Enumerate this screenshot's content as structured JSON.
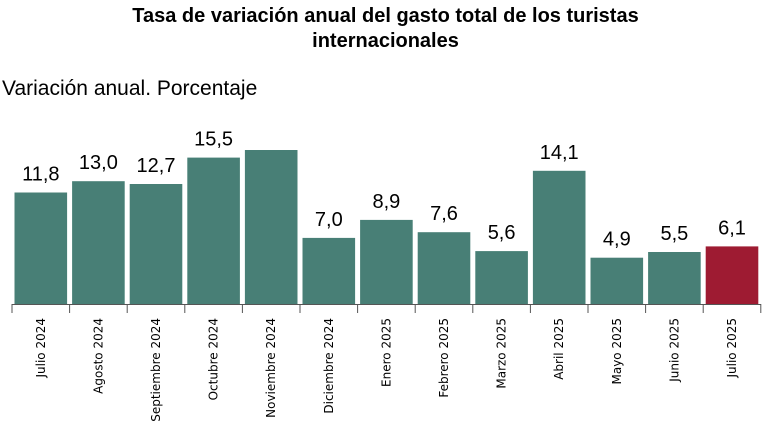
{
  "chart_data": {
    "type": "bar",
    "title": [
      "Tasa de variación anual del gasto total de los turistas",
      "internacionales"
    ],
    "subtitle": "Variación anual. Porcentaje",
    "categories": [
      "Julio 2024",
      "Agosto 2024",
      "Septiembre 2024",
      "Octubre 2024",
      "Noviembre 2024",
      "Diciembre 2024",
      "Enero 2025",
      "Febrero 2025",
      "Marzo 2025",
      "Abril 2025",
      "Mayo 2025",
      "Junio 2025",
      "Julio 2025"
    ],
    "values": [
      11.8,
      13.0,
      12.7,
      15.5,
      16.3,
      7.0,
      8.9,
      7.6,
      5.6,
      14.1,
      4.9,
      5.5,
      6.1
    ],
    "value_labels": [
      "11,8",
      "13,0",
      "12,7",
      "15,5",
      "",
      "7,0",
      "8,9",
      "7,6",
      "5,6",
      "14,1",
      "4,9",
      "5,5",
      "6,1"
    ],
    "ylim": [
      0,
      16.3
    ],
    "grid": false,
    "legend": "none",
    "colors": {
      "bar": "#487F76",
      "highlight": "#9E1B32",
      "axis": "#555555"
    },
    "highlight_index": 12
  }
}
